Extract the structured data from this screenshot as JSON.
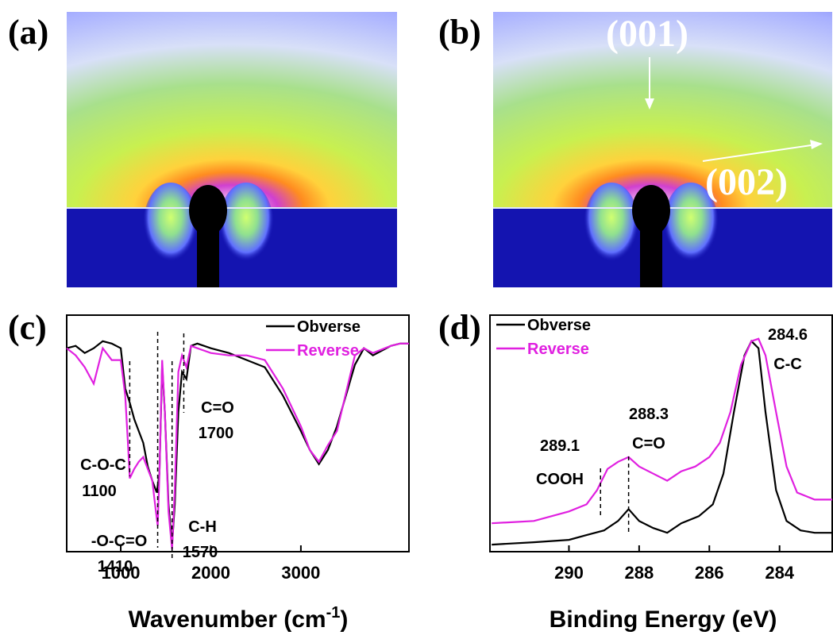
{
  "images": [
    {
      "label": "(a)"
    },
    {
      "label": "(b)",
      "annotations": [
        "(001)",
        "(002)"
      ]
    }
  ],
  "chart_data": [
    {
      "type": "line",
      "panel_label": "(c)",
      "x_label": [
        "Wavenumber (cm",
        "-1",
        ")"
      ],
      "xlim": [
        400,
        4200
      ],
      "xticks": [
        1000,
        2000,
        3000
      ],
      "ylim": [
        0,
        100
      ],
      "legend": "upper right",
      "annotations": [
        {
          "x": 1100,
          "lines": [
            "C-O-C",
            "1100"
          ]
        },
        {
          "x": 1410,
          "lines": [
            "-O-C=O",
            "1410"
          ]
        },
        {
          "x": 1570,
          "lines": [
            "C-H",
            "1570"
          ]
        },
        {
          "x": 1700,
          "lines": [
            "C=O",
            "1700"
          ]
        }
      ],
      "series": [
        {
          "name": "Obverse",
          "color": "#000000",
          "x": [
            400,
            500,
            600,
            700,
            800,
            900,
            1000,
            1050,
            1100,
            1150,
            1200,
            1250,
            1300,
            1350,
            1400,
            1430,
            1460,
            1490,
            1530,
            1570,
            1600,
            1640,
            1680,
            1730,
            1780,
            1850,
            2000,
            2200,
            2400,
            2600,
            2800,
            3000,
            3100,
            3200,
            3300,
            3400,
            3600,
            3700,
            3800,
            4000,
            4100,
            4200
          ],
          "values": [
            86,
            87,
            84,
            86,
            89,
            88,
            86,
            69,
            63,
            56,
            51,
            46,
            36,
            30,
            25,
            33,
            79,
            59,
            20,
            3,
            20,
            59,
            76,
            73,
            87,
            88,
            86,
            84,
            81,
            78,
            66,
            51,
            43,
            37,
            43,
            53,
            79,
            86,
            83,
            87,
            88,
            88
          ]
        },
        {
          "name": "Reverse",
          "color": "#e020e0",
          "x": [
            400,
            500,
            600,
            700,
            800,
            900,
            1000,
            1050,
            1080,
            1100,
            1150,
            1200,
            1250,
            1300,
            1350,
            1390,
            1410,
            1430,
            1460,
            1490,
            1530,
            1570,
            1600,
            1640,
            1680,
            1730,
            1780,
            1850,
            2000,
            2200,
            2400,
            2600,
            2800,
            3000,
            3100,
            3200,
            3300,
            3400,
            3600,
            3700,
            3800,
            4000,
            4100,
            4200
          ],
          "values": [
            86,
            83,
            78,
            71,
            86,
            81,
            81,
            66,
            46,
            31,
            35,
            38,
            40,
            35,
            30,
            17,
            11,
            33,
            81,
            59,
            17,
            1,
            26,
            76,
            83,
            78,
            87,
            86,
            84,
            83,
            83,
            81,
            69,
            53,
            43,
            38,
            45,
            51,
            83,
            86,
            84,
            87,
            88,
            88
          ]
        }
      ]
    },
    {
      "type": "line",
      "panel_label": "(d)",
      "x_label": [
        "Binding Energy (eV)"
      ],
      "xlim": [
        292.25,
        282.5
      ],
      "xticks": [
        290,
        288,
        286,
        284
      ],
      "ylim": [
        0,
        100
      ],
      "legend": "upper left",
      "annotations": [
        {
          "x": 289.1,
          "lines": [
            "289.1",
            "COOH"
          ]
        },
        {
          "x": 288.3,
          "lines": [
            "288.3",
            "C=O"
          ]
        },
        {
          "x": 284.6,
          "lines": [
            "284.6",
            "C-C"
          ]
        }
      ],
      "series": [
        {
          "name": "Obverse",
          "color": "#000000",
          "x": [
            292.2,
            291,
            290,
            289.5,
            289,
            288.6,
            288.3,
            288,
            287.6,
            287.2,
            286.8,
            286.3,
            285.9,
            285.6,
            285.3,
            285.0,
            284.8,
            284.6,
            284.4,
            284.1,
            283.8,
            283.4,
            283,
            282.5
          ],
          "values": [
            3,
            4,
            5,
            7,
            9,
            13,
            18,
            13,
            10,
            8,
            12,
            15,
            20,
            33,
            59,
            83,
            89,
            86,
            59,
            26,
            13,
            9,
            8,
            8
          ]
        },
        {
          "name": "Reverse",
          "color": "#e020e0",
          "x": [
            292.2,
            291,
            290,
            289.5,
            289.2,
            288.9,
            288.6,
            288.3,
            288,
            287.6,
            287.2,
            286.8,
            286.4,
            286,
            285.7,
            285.4,
            285.1,
            284.8,
            284.6,
            284.4,
            284.1,
            283.8,
            283.5,
            283,
            282.5
          ],
          "values": [
            12,
            13,
            17,
            20,
            26,
            35,
            38,
            40,
            36,
            33,
            30,
            34,
            36,
            40,
            46,
            59,
            79,
            89,
            90,
            83,
            59,
            36,
            25,
            22,
            22
          ]
        }
      ]
    }
  ]
}
